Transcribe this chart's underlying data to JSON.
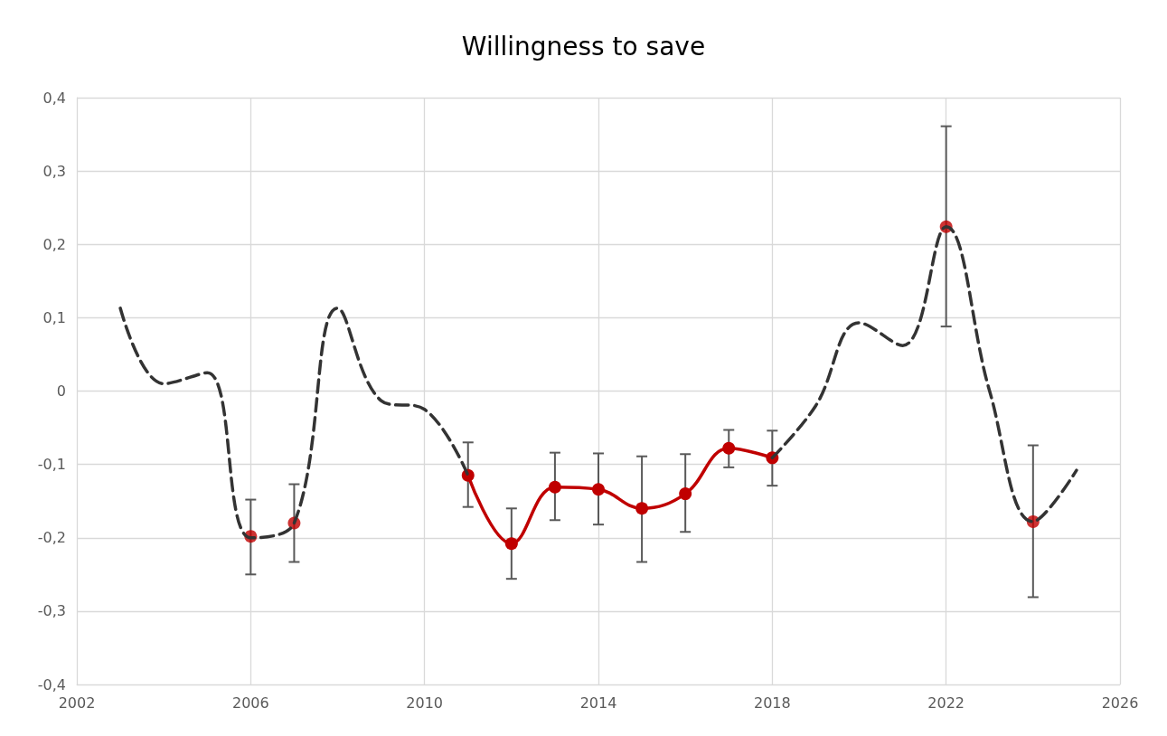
{
  "chart_data": {
    "type": "line",
    "title": "Willingness to save",
    "xlim": [
      2002,
      2026
    ],
    "xticks": [
      2002,
      2006,
      2010,
      2014,
      2018,
      2022,
      2026
    ],
    "ylim": [
      -0.4,
      0.4
    ],
    "yticks": [
      {
        "value": -0.4,
        "label": "-0,4"
      },
      {
        "value": -0.3,
        "label": "-0,3"
      },
      {
        "value": -0.2,
        "label": "-0,2"
      },
      {
        "value": -0.1,
        "label": "-0,1"
      },
      {
        "value": 0,
        "label": "0"
      },
      {
        "value": 0.1,
        "label": "0,1"
      },
      {
        "value": 0.2,
        "label": "0,2"
      },
      {
        "value": 0.3,
        "label": "0,3"
      },
      {
        "value": 0.4,
        "label": "0,4"
      }
    ],
    "grid": true,
    "series": [
      {
        "color": "#c00000",
        "line_style": "solid",
        "marker": "circle",
        "x": [
          2011,
          2012,
          2013,
          2014,
          2015,
          2016,
          2017,
          2018
        ],
        "values": [
          -0.115,
          -0.208,
          -0.131,
          -0.134,
          -0.16,
          -0.14,
          -0.078,
          -0.091
        ],
        "errors": [
          [
            -0.158,
            -0.07
          ],
          [
            -0.256,
            -0.16
          ],
          [
            -0.176,
            -0.084
          ],
          [
            -0.182,
            -0.085
          ],
          [
            -0.233,
            -0.089
          ],
          [
            -0.192,
            -0.086
          ],
          [
            -0.104,
            -0.053
          ],
          [
            -0.129,
            -0.054
          ]
        ]
      },
      {
        "type": "scatter",
        "color": "#c00000",
        "marker": "circle",
        "x": [
          2006,
          2007,
          2022,
          2024
        ],
        "values": [
          -0.198,
          -0.18,
          0.224,
          -0.178
        ],
        "errors": [
          [
            -0.25,
            -0.148
          ],
          [
            -0.233,
            -0.127
          ],
          [
            0.088,
            0.361
          ],
          [
            -0.281,
            -0.074
          ]
        ]
      },
      {
        "color": "#333333",
        "line_style": "dashed",
        "marker": "none",
        "x": [
          2003,
          2004,
          2005,
          2006,
          2007,
          2008,
          2009,
          2010,
          2011,
          2012,
          2013,
          2014,
          2015,
          2016,
          2017,
          2018,
          2019,
          2020,
          2021,
          2022,
          2023,
          2024,
          2025
        ],
        "values": [
          0.113,
          0.01,
          0.025,
          -0.2,
          -0.18,
          0.113,
          -0.013,
          -0.025,
          -0.115,
          null,
          null,
          null,
          null,
          null,
          null,
          -0.091,
          -0.02,
          0.093,
          0.062,
          0.224,
          0.0,
          -0.178,
          -0.108
        ]
      }
    ]
  }
}
